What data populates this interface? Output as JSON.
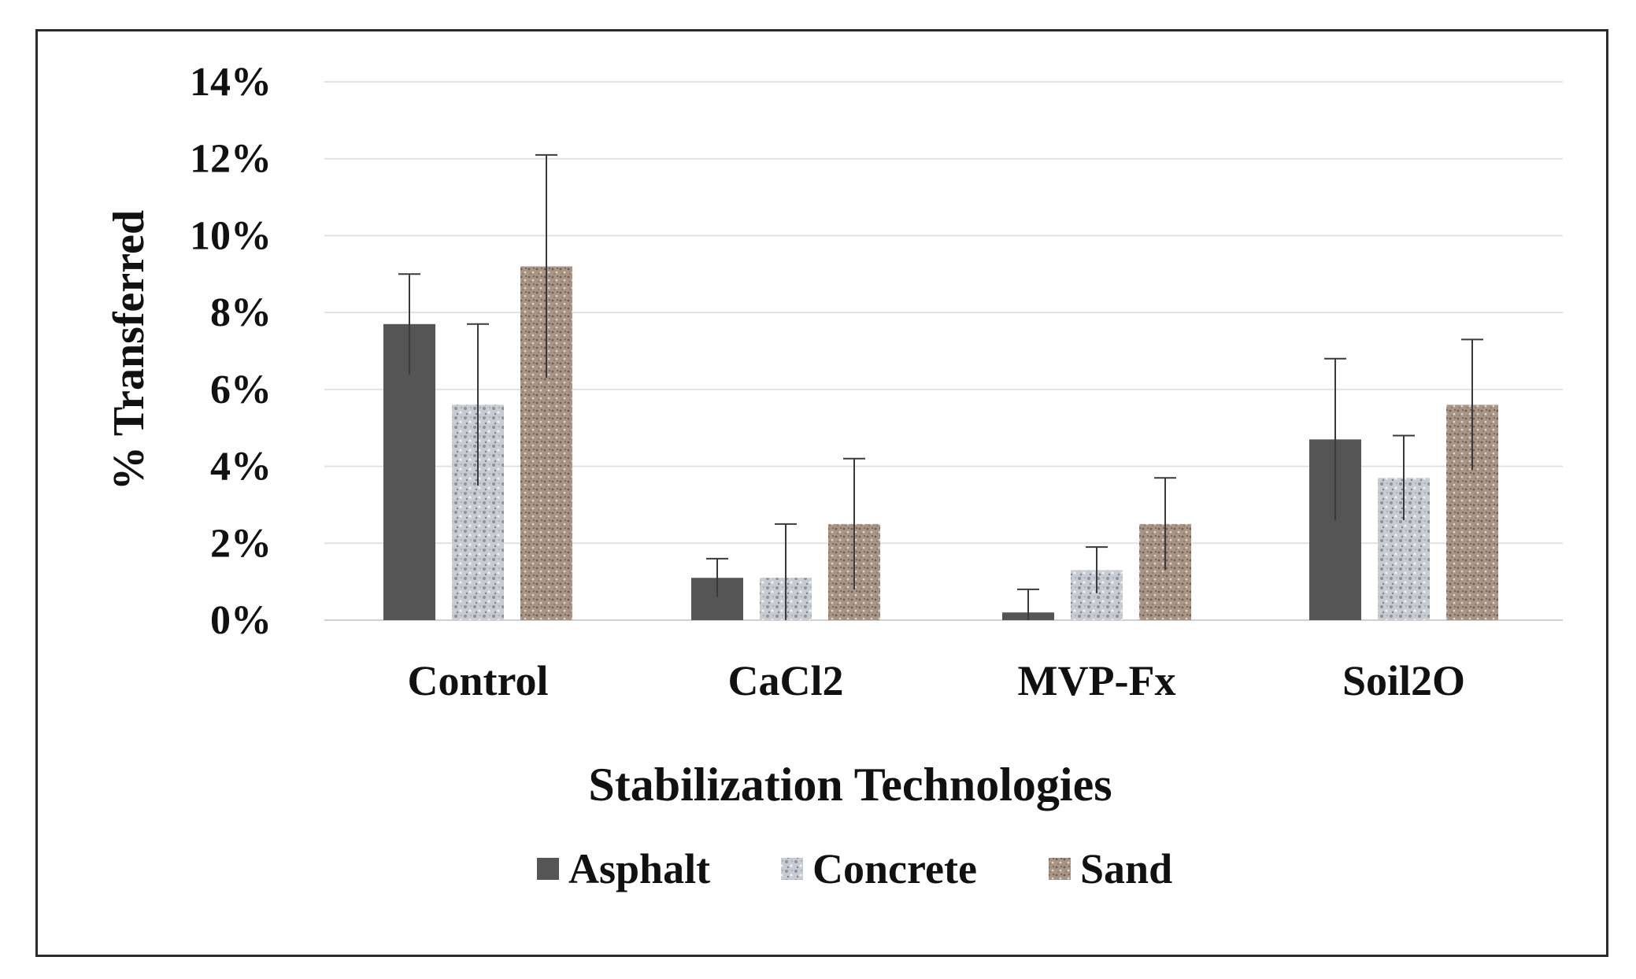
{
  "chart_data": {
    "type": "bar",
    "xlabel": "Stabilization Technologies",
    "ylabel": "% Transferred",
    "ylim": [
      0,
      14
    ],
    "yticks": [
      0,
      2,
      4,
      6,
      8,
      10,
      12,
      14
    ],
    "ytick_labels": [
      "0%",
      "2%",
      "4%",
      "6%",
      "8%",
      "10%",
      "12%",
      "14%"
    ],
    "grid": true,
    "legend_position": "bottom",
    "categories": [
      "Control",
      "CaCl2",
      "MVP-Fx",
      "Soil2O"
    ],
    "series": [
      {
        "name": "Asphalt",
        "color": "#555555",
        "values": [
          7.7,
          1.1,
          0.2,
          4.7
        ],
        "errors": [
          1.3,
          0.5,
          0.6,
          2.1
        ]
      },
      {
        "name": "Concrete",
        "color": "#c8ccd2",
        "values": [
          5.6,
          1.1,
          1.3,
          3.7
        ],
        "errors": [
          2.1,
          1.4,
          0.6,
          1.1
        ]
      },
      {
        "name": "Sand",
        "color": "#a99585",
        "values": [
          9.2,
          2.5,
          2.5,
          5.6
        ],
        "errors": [
          2.9,
          1.7,
          1.2,
          1.7
        ]
      }
    ]
  }
}
